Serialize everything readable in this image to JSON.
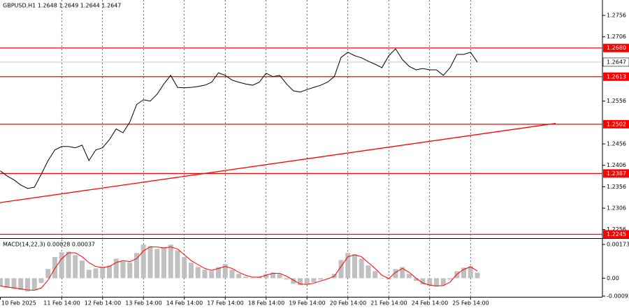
{
  "chart_data": [
    {
      "type": "line",
      "title": "GBPUSD,H1  1.2648 1.2649 1.2644 1.2647",
      "color": "#000000",
      "categories": [
        "10 Feb 2025",
        null,
        null,
        null,
        null,
        null,
        null,
        null,
        null,
        "11 Feb 14:00",
        null,
        null,
        null,
        null,
        null,
        "12 Feb 14:00",
        null,
        null,
        null,
        null,
        null,
        "13 Feb 14:00",
        null,
        null,
        null,
        null,
        null,
        "14 Feb 14:00",
        null,
        null,
        null,
        null,
        null,
        "17 Feb 14:00",
        null,
        null,
        null,
        null,
        null,
        "18 Feb 14:00",
        null,
        null,
        null,
        null,
        null,
        "19 Feb 14:00",
        null,
        null,
        null,
        null,
        null,
        "20 Feb 14:00",
        null,
        null,
        null,
        null,
        null,
        "21 Feb 14:00",
        null,
        null,
        null,
        null,
        null,
        "24 Feb 14:00",
        null,
        null,
        null,
        null,
        null,
        "25 Feb 14:00",
        null
      ],
      "values": [
        1.2393,
        1.2381,
        1.2372,
        1.236,
        1.2352,
        1.2355,
        1.2385,
        1.2417,
        1.2442,
        1.245,
        1.245,
        1.2447,
        1.2453,
        1.2417,
        1.2442,
        1.2447,
        1.2466,
        1.2491,
        1.2482,
        1.2507,
        1.2548,
        1.2559,
        1.2556,
        1.2572,
        1.2596,
        1.2616,
        1.2588,
        1.2587,
        1.2588,
        1.259,
        1.2593,
        1.26,
        1.2622,
        1.2616,
        1.2605,
        1.26,
        1.2596,
        1.2593,
        1.26,
        1.2621,
        1.2613,
        1.2616,
        1.2596,
        1.258,
        1.2577,
        1.2583,
        1.2588,
        1.2593,
        1.26,
        1.2613,
        1.2658,
        1.267,
        1.2662,
        1.2657,
        1.2649,
        1.2642,
        1.2634,
        1.2662,
        1.2678,
        1.2653,
        1.2637,
        1.2629,
        1.2632,
        1.2629,
        1.2629,
        1.2616,
        1.2634,
        1.2665,
        1.2665,
        1.267,
        1.2647
      ],
      "ylim": [
        1.2236,
        1.2792
      ],
      "yticks": [
        1.2756,
        1.2706,
        1.2556,
        1.2456,
        1.2406,
        1.2356,
        1.2306,
        1.2256
      ],
      "levels": [
        {
          "value": 1.268,
          "label": "1.2680"
        },
        1.2613,
        1.2502,
        1.2387,
        1.2245
      ],
      "level_color": "#ff0000",
      "current_price": 1.2647,
      "trendline": [
        1.2319,
        1.2504
      ],
      "grid": true
    },
    {
      "type": "bar",
      "title": "MACD(14,22,3) 0.00028 0.00037",
      "color": "#c0c0c0",
      "line_color": "#ff0000",
      "values": [
        -0.00043,
        -0.0005,
        -0.00054,
        -0.0006,
        -0.00068,
        -0.0006,
        -0.00025,
        0.00047,
        0.00108,
        0.00133,
        0.00136,
        0.00118,
        0.0009,
        0.00043,
        0.0005,
        0.00057,
        0.00065,
        0.001,
        0.00086,
        0.00079,
        0.00129,
        0.00172,
        0.00165,
        0.0015,
        0.00158,
        0.00172,
        0.00143,
        0.00108,
        0.00079,
        0.00057,
        0.00043,
        0.00036,
        0.00057,
        0.00072,
        0.00043,
        0.00022,
        7e-05,
        0,
        7e-05,
        0.00022,
        0.00029,
        0.00022,
        -7e-05,
        -0.00029,
        -0.00036,
        -0.00032,
        -0.00022,
        -7e-05,
        0,
        0.00022,
        0.00093,
        0.00129,
        0.00122,
        0.001,
        0.00065,
        0.00036,
        0,
        -7e-05,
        0.00047,
        0.00057,
        0.00022,
        -0.00014,
        -0.00032,
        -0.00039,
        -0.00043,
        -0.00036,
        -7e-05,
        0.00036,
        0.00054,
        0.00061,
        0.00028
      ],
      "line_values": [
        -0.0004,
        -0.00045,
        -0.0005,
        -0.00055,
        -0.0006,
        -0.00062,
        -0.0005,
        -0.0001,
        0.0005,
        0.001,
        0.0013,
        0.0013,
        0.0011,
        0.0008,
        0.0006,
        0.00055,
        0.0006,
        0.0008,
        0.0009,
        0.00085,
        0.001,
        0.0014,
        0.0016,
        0.0016,
        0.00155,
        0.0016,
        0.0015,
        0.0012,
        0.0009,
        0.0007,
        0.0005,
        0.0004,
        0.0005,
        0.0006,
        0.0005,
        0.0003,
        0.00015,
        5e-05,
        5e-05,
        0.00015,
        0.00025,
        0.00025,
        0.0001,
        -0.0001,
        -0.0003,
        -0.00032,
        -0.00026,
        -0.00014,
        -4e-05,
        0.0001,
        0.0006,
        0.0011,
        0.0012,
        0.0011,
        0.0008,
        0.0005,
        0.00015,
        -2e-05,
        0.0003,
        0.0005,
        0.0003,
        0,
        -0.00025,
        -0.00035,
        -0.0004,
        -0.00038,
        -0.0002,
        0.0002,
        0.00045,
        0.00058,
        0.00037
      ],
      "ylim": [
        -0.00092,
        0.00198
      ],
      "yticks": [
        0.00173,
        {
          "value": 0,
          "label": "0.00"
        },
        -0.00092
      ]
    }
  ]
}
